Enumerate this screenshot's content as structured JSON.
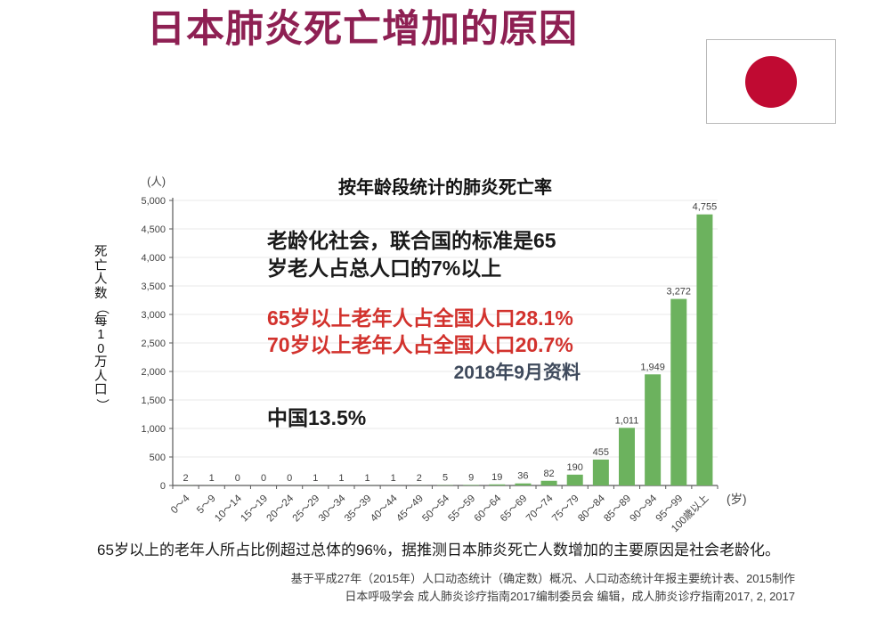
{
  "header": {
    "title": "日本肺炎死亡增加的原因",
    "flag": "japan-flag"
  },
  "colors": {
    "title": "#8e2053",
    "bar_green": "#6cb25e",
    "red_text": "#d2322d",
    "slate_text": "#3f4a5c",
    "flag_red": "#c00a32",
    "axis": "#595959",
    "grid": "#e8e8e8"
  },
  "chart_data": {
    "type": "bar",
    "title": "按年龄段统计的肺炎死亡率",
    "ylabel": "死亡人数（每10万人口）",
    "y_unit": "(人)",
    "x_unit": "(岁)",
    "categories": [
      "0～4",
      "5～9",
      "10～14",
      "15～19",
      "20～24",
      "25～29",
      "30～34",
      "35～39",
      "40～44",
      "45～49",
      "50～54",
      "55～59",
      "60～64",
      "65～69",
      "70～74",
      "75～79",
      "80～84",
      "85～89",
      "90～94",
      "95～99",
      "100歳以上"
    ],
    "values": [
      2,
      1,
      0,
      0,
      0,
      1,
      1,
      1,
      1,
      2,
      5,
      9,
      19,
      36,
      82,
      190,
      455,
      1011,
      1949,
      3272,
      4755
    ],
    "ylim": [
      0,
      5000
    ],
    "ytick_step": 500,
    "grid": true,
    "legend": "none",
    "bar_color": "#6cb25e"
  },
  "annotations": {
    "aging_line1": "老龄化社会，联合国的标准是65",
    "aging_line2": "岁老人占总人口的7%以上",
    "red_line1": "65岁以上老年人占全国人口28.1%",
    "red_line2": "70岁以上老年人占全国人口20.7%",
    "data_date": "2018年9月资料",
    "china": "中国13.5%"
  },
  "footer": {
    "caption": "65岁以上的老年人所占比例超过总体的96%，据推测日本肺炎死亡人数增加的主要原因是社会老龄化。",
    "source_line1": "基于平成27年（2015年）人口动态统计（确定数）概况、人口动态统计年报主要统计表、2015制作",
    "source_line2": "日本呼吸学会  成人肺炎诊疗指南2017编制委员会 编辑，成人肺炎诊疗指南2017, 2, 2017"
  }
}
